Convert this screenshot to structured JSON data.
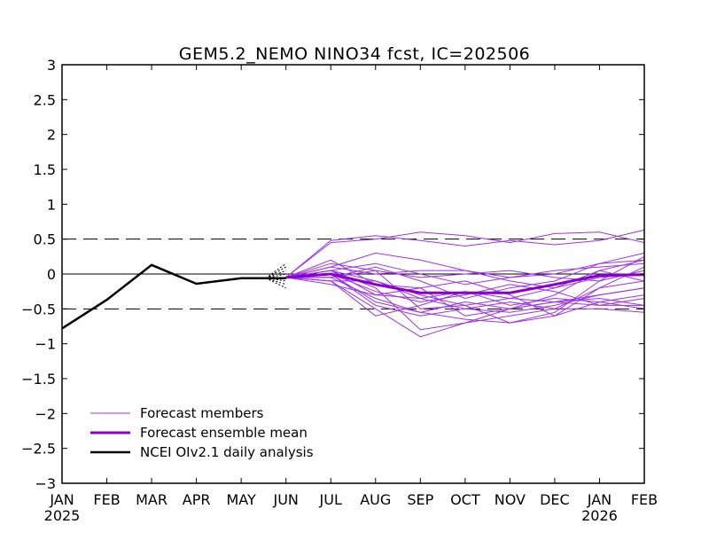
{
  "chart_data": {
    "type": "line",
    "title": "GEM5.2_NEMO NINO34 fcst, IC=202506",
    "xlabel": "",
    "ylabel": "",
    "x_ticks": [
      "JAN",
      "FEB",
      "MAR",
      "APR",
      "MAY",
      "JUN",
      "JUL",
      "AUG",
      "SEP",
      "OCT",
      "NOV",
      "DEC",
      "JAN",
      "FEB"
    ],
    "x_year_labels": [
      {
        "month_index": 0,
        "label": "2025"
      },
      {
        "month_index": 12,
        "label": "2026"
      }
    ],
    "y_ticks": [
      "3",
      "2.5",
      "2",
      "1.5",
      "1",
      "0.5",
      "0",
      "-0.5",
      "-1",
      "-1.5",
      "-2",
      "-2.5",
      "-3"
    ],
    "ylim": [
      -3,
      3
    ],
    "reference_lines": [
      {
        "y": 0.5,
        "style": "dashed"
      },
      {
        "y": -0.5,
        "style": "dashed"
      },
      {
        "y": 0,
        "style": "solid"
      }
    ],
    "legend": {
      "placement": "bottom-left",
      "entries": [
        {
          "label": "Forecast members",
          "color": "#9933ee",
          "weight": "thin"
        },
        {
          "label": "Forecast ensemble mean",
          "color": "#8800cc",
          "weight": "thick"
        },
        {
          "label": "NCEI OIv2.1 daily analysis",
          "color": "#000000",
          "weight": "thick"
        }
      ]
    },
    "colors": {
      "members": "#9933ee",
      "ensemble_mean": "#8800cc",
      "observed": "#000000",
      "spread": "#000000"
    },
    "series": [
      {
        "name": "NCEI OIv2.1 daily analysis",
        "x": [
          0,
          1,
          2,
          3,
          4,
          5
        ],
        "values": [
          -0.78,
          -0.37,
          0.13,
          -0.14,
          -0.06,
          -0.06
        ]
      },
      {
        "name": "Forecast ensemble mean",
        "x": [
          5,
          6,
          7,
          8,
          9,
          10,
          11,
          12,
          13
        ],
        "values": [
          -0.05,
          0.0,
          -0.15,
          -0.27,
          -0.27,
          -0.27,
          -0.15,
          -0.02,
          -0.01
        ]
      }
    ],
    "members": [
      [
        -0.05,
        0.45,
        0.5,
        0.6,
        0.55,
        0.45,
        0.58,
        0.6,
        0.45
      ],
      [
        -0.05,
        0.48,
        0.55,
        0.48,
        0.4,
        0.48,
        0.42,
        0.48,
        0.63
      ],
      [
        -0.05,
        0.1,
        0.3,
        0.2,
        0.05,
        -0.05,
        0.0,
        0.15,
        0.3
      ],
      [
        -0.05,
        0.05,
        -0.1,
        -0.3,
        -0.45,
        -0.35,
        -0.2,
        0.05,
        0.2
      ],
      [
        -0.05,
        -0.05,
        -0.35,
        -0.55,
        -0.65,
        -0.7,
        -0.6,
        -0.4,
        -0.5
      ],
      [
        -0.05,
        -0.1,
        -0.5,
        -0.9,
        -0.7,
        -0.5,
        -0.4,
        -0.35,
        -0.45
      ],
      [
        -0.05,
        0.15,
        0.05,
        -0.05,
        0.0,
        0.05,
        -0.05,
        -0.1,
        0.05
      ],
      [
        -0.05,
        -0.15,
        -0.3,
        -0.35,
        -0.5,
        -0.55,
        -0.45,
        -0.3,
        -0.2
      ],
      [
        -0.05,
        0.0,
        -0.25,
        -0.4,
        -0.3,
        -0.15,
        -0.25,
        -0.45,
        -0.35
      ],
      [
        -0.05,
        0.05,
        -0.2,
        -0.8,
        -0.7,
        -0.6,
        -0.5,
        -0.2,
        0.1
      ],
      [
        -0.05,
        -0.1,
        -0.6,
        -0.45,
        -0.25,
        -0.35,
        -0.4,
        -0.3,
        -0.2
      ],
      [
        -0.05,
        0.1,
        0.0,
        0.05,
        0.05,
        -0.1,
        -0.2,
        -0.05,
        0.0
      ],
      [
        -0.05,
        -0.05,
        0.1,
        -0.1,
        -0.35,
        -0.2,
        -0.1,
        0.15,
        0.2
      ],
      [
        -0.05,
        0.0,
        -0.45,
        -0.6,
        -0.5,
        -0.4,
        -0.5,
        -0.5,
        -0.55
      ],
      [
        -0.05,
        0.2,
        -0.15,
        -0.2,
        -0.1,
        -0.3,
        -0.6,
        -0.2,
        -0.1
      ],
      [
        -0.05,
        -0.05,
        0.05,
        -0.5,
        -0.45,
        -0.7,
        -0.55,
        -0.1,
        0.25
      ],
      [
        -0.05,
        0.05,
        -0.3,
        -0.2,
        -0.6,
        -0.5,
        -0.3,
        0.05,
        -0.1
      ],
      [
        -0.05,
        -0.1,
        -0.1,
        -0.35,
        -0.25,
        -0.45,
        -0.35,
        -0.4,
        -0.3
      ],
      [
        -0.05,
        0.0,
        -0.4,
        -0.55,
        -0.4,
        -0.5,
        -0.4,
        -0.45,
        -0.45
      ],
      [
        -0.05,
        0.05,
        0.15,
        0.0,
        -0.15,
        -0.05,
        0.05,
        0.1,
        0.15
      ]
    ],
    "members_x": [
      5,
      6,
      7,
      8,
      9,
      10,
      11,
      12,
      13
    ],
    "spread_lines": [
      {
        "x": [
          4.55,
          5.0
        ],
        "values": [
          -0.06,
          0.1
        ]
      },
      {
        "x": [
          4.55,
          5.0
        ],
        "values": [
          -0.06,
          0.05
        ]
      },
      {
        "x": [
          4.55,
          5.0
        ],
        "values": [
          -0.06,
          0.0
        ]
      },
      {
        "x": [
          4.55,
          5.0
        ],
        "values": [
          -0.06,
          -0.05
        ]
      },
      {
        "x": [
          4.55,
          5.0
        ],
        "values": [
          -0.06,
          -0.1
        ]
      },
      {
        "x": [
          4.55,
          5.0
        ],
        "values": [
          -0.06,
          -0.15
        ]
      },
      {
        "x": [
          4.55,
          5.0
        ],
        "values": [
          -0.06,
          -0.2
        ]
      },
      {
        "x": [
          4.55,
          5.0
        ],
        "values": [
          -0.06,
          0.15
        ]
      }
    ]
  }
}
